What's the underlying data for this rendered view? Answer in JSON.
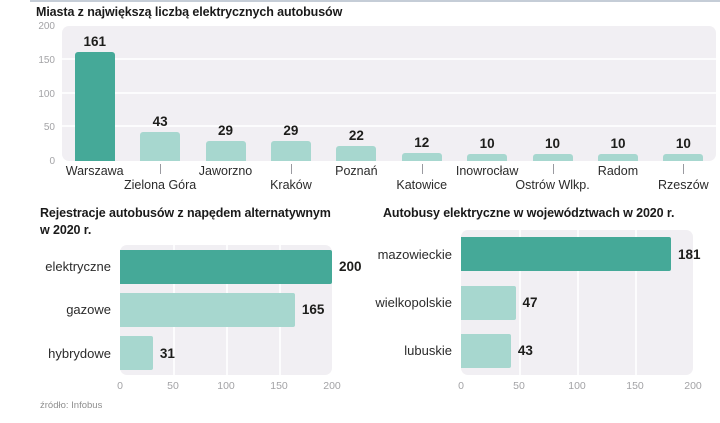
{
  "source": "źródło: Infobus",
  "colors": {
    "dark_teal": "#45a998",
    "light_teal": "#a7d7cf",
    "plot_bg": "#f1eff3",
    "grid": "#ffffff",
    "axis_text": "#a3a3a6",
    "category_text": "#2b2b2b",
    "value_text": "#1d1d1b",
    "top_strip": "#c5cdd7"
  },
  "chart_data": [
    {
      "id": "cities",
      "type": "bar",
      "orientation": "vertical",
      "title": "Miasta z największą liczbą elektrycznych autobusów",
      "categories": [
        "Warszawa",
        "Zielona Góra",
        "Jaworzno",
        "Kraków",
        "Poznań",
        "Katowice",
        "Inowrocław",
        "Ostrów Wlkp.",
        "Radom",
        "Rzeszów"
      ],
      "values": [
        161,
        43,
        29,
        29,
        22,
        12,
        10,
        10,
        10,
        10
      ],
      "highlight_index": 0,
      "y_ticks": [
        0,
        50,
        100,
        150,
        200
      ],
      "ylim": [
        0,
        200
      ],
      "grid": true,
      "legend": "none"
    },
    {
      "id": "registrations",
      "type": "bar",
      "orientation": "horizontal",
      "title": "Rejestracje autobusów z napędem alternatywnym w 2020 r.",
      "title_lines": [
        "Rejestracje autobusów z napędem alternatywnym",
        "w 2020 r."
      ],
      "categories": [
        "elektryczne",
        "gazowe",
        "hybrydowe"
      ],
      "values": [
        200,
        165,
        31
      ],
      "highlight_index": 0,
      "x_ticks": [
        0,
        50,
        100,
        150,
        200
      ],
      "xlim": [
        0,
        200
      ],
      "grid": true,
      "legend": "none"
    },
    {
      "id": "voivodeships",
      "type": "bar",
      "orientation": "horizontal",
      "title": "Autobusy elektryczne w województwach w 2020 r.",
      "categories": [
        "mazowieckie",
        "wielkopolskie",
        "lubuskie"
      ],
      "values": [
        181,
        47,
        43
      ],
      "highlight_index": 0,
      "x_ticks": [
        0,
        50,
        100,
        150,
        200
      ],
      "xlim": [
        0,
        200
      ],
      "grid": true,
      "legend": "none"
    }
  ]
}
